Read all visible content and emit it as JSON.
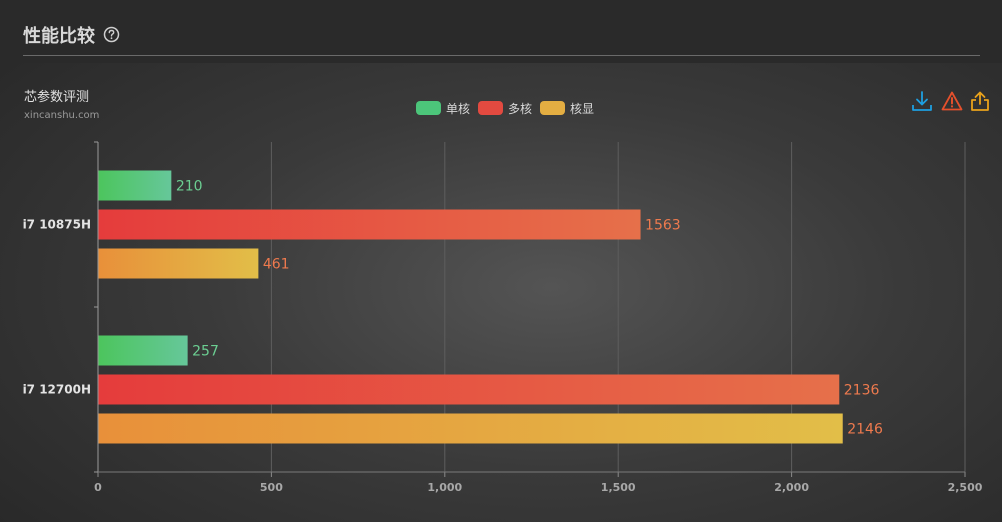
{
  "header": {
    "title": "性能比较"
  },
  "brand": {
    "name": "芯参数评测",
    "site": "xincanshu.com"
  },
  "icons": {
    "help": "help-circle-icon",
    "download": "download-icon",
    "report": "warning-icon",
    "share": "share-icon"
  },
  "toolbar_colors": {
    "download": "#1e9fe0",
    "report": "#e5502c",
    "share": "#e9a21b"
  },
  "chart_data": {
    "type": "bar",
    "orientation": "horizontal",
    "categories": [
      "i7 10875H",
      "i7 12700H"
    ],
    "series": [
      {
        "name": "单核",
        "values": [
          210,
          257
        ],
        "colors": [
          "#4cc55d",
          "#66c79a"
        ],
        "label_color": "#6ccf92"
      },
      {
        "name": "多核",
        "values": [
          1563,
          2136
        ],
        "colors": [
          "#e53c3c",
          "#e6704a"
        ],
        "label_color": "#ee7a4e"
      },
      {
        "name": "核显",
        "values": [
          461,
          2146
        ],
        "colors": [
          "#e8903a",
          "#e2be48"
        ],
        "label_color": "#ee7a4e"
      }
    ],
    "xlim": [
      0,
      2500
    ],
    "xticks": [
      0,
      500,
      1000,
      1500,
      2000,
      2500
    ],
    "xtick_labels": [
      "0",
      "500",
      "1,000",
      "1,500",
      "2,000",
      "2,500"
    ],
    "grid": true,
    "legend_position": "top-center",
    "data_labels": true
  }
}
